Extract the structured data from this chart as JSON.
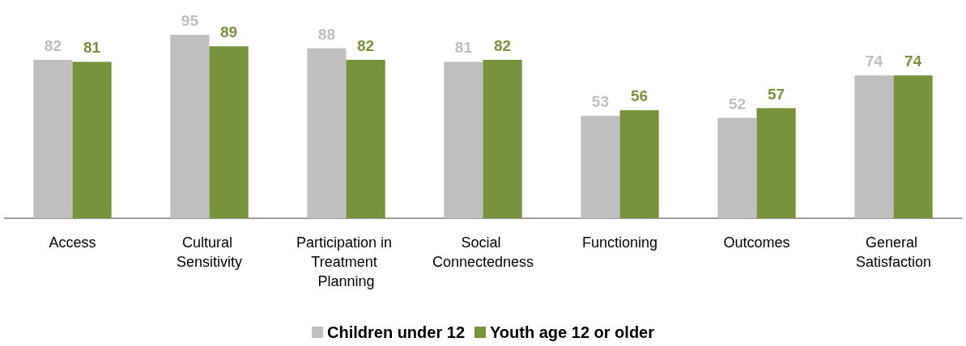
{
  "chart_data": {
    "type": "bar",
    "categories": [
      "Access",
      "Cultural Sensitivity",
      "Participation in Treatment Planning",
      "Social Connectedness",
      "Functioning",
      "Outcomes",
      "General Satisfaction"
    ],
    "series": [
      {
        "name": "Children under 12",
        "color": "#bfbfbf",
        "values": [
          82,
          95,
          88,
          81,
          53,
          52,
          74
        ]
      },
      {
        "name": "Youth age 12 or older",
        "color": "#77933c",
        "values": [
          81,
          89,
          82,
          82,
          56,
          57,
          74
        ]
      }
    ],
    "data_labels": true,
    "legend": "bottom",
    "grid": false,
    "tick_labels": "x"
  }
}
